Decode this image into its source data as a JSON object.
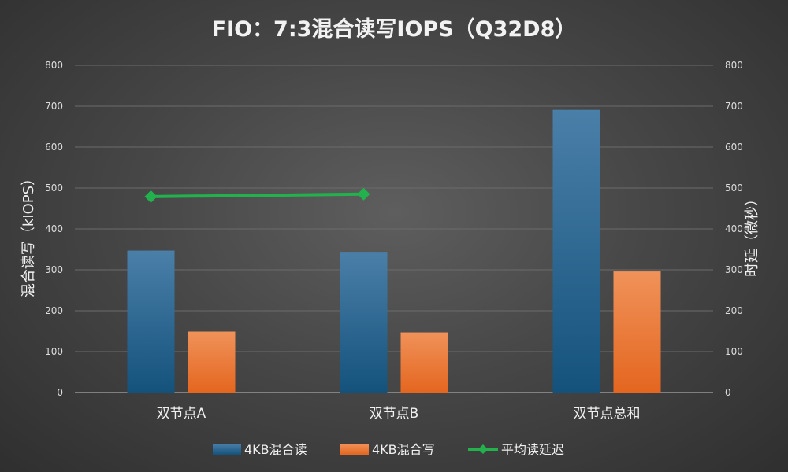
{
  "chart_data": {
    "type": "bar",
    "title": "FIO：7:3混合读写IOPS（Q32D8）",
    "categories": [
      "双节点A",
      "双节点B",
      "双节点总和"
    ],
    "series": [
      {
        "name": "4KB混合读",
        "type": "bar",
        "axis": "left",
        "values": [
          347,
          344,
          691
        ],
        "color": "#1f5f8b"
      },
      {
        "name": "4KB混合写",
        "type": "bar",
        "axis": "left",
        "values": [
          149,
          147,
          296
        ],
        "color": "#ed7d31"
      },
      {
        "name": "平均读延迟",
        "type": "line",
        "axis": "right",
        "values": [
          479,
          485,
          null
        ],
        "color": "#22b14c"
      }
    ],
    "ylabel": "混合读写（kIOPS）",
    "y2label": "时延（微秒）",
    "ylim": [
      0,
      800
    ],
    "y2lim": [
      0,
      800
    ],
    "yticks": [
      "0",
      "100",
      "200",
      "300",
      "400",
      "500",
      "600",
      "700",
      "800"
    ],
    "y2ticks": [
      "0",
      "100",
      "200",
      "300",
      "400",
      "500",
      "600",
      "700",
      "800"
    ],
    "grid": true,
    "legend": "bottom"
  }
}
